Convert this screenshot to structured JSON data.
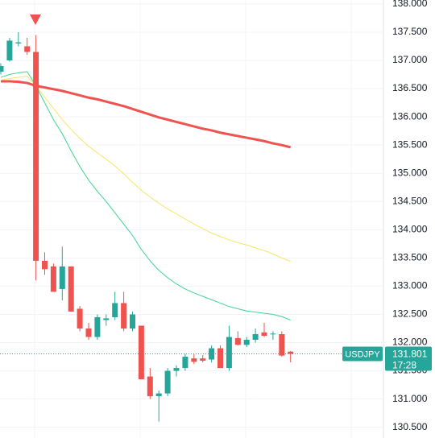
{
  "chart_data": {
    "type": "candlestick",
    "symbol": "USDJPY",
    "last_price": 131.801,
    "last_time": "17:28",
    "up_color": "#26a69a",
    "down_color": "#ef5350",
    "ylim": [
      130.31,
      138.07
    ],
    "yticks": [
      {
        "value": 130.5,
        "label": "130.500"
      },
      {
        "value": 131,
        "label": "131.000"
      },
      {
        "value": 131.5,
        "label": "131.500"
      },
      {
        "value": 132,
        "label": "132.000"
      },
      {
        "value": 132.5,
        "label": "132.500"
      },
      {
        "value": 133,
        "label": "133.000"
      },
      {
        "value": 133.5,
        "label": "133.500"
      },
      {
        "value": 134,
        "label": "134.000"
      },
      {
        "value": 134.5,
        "label": "134.500"
      },
      {
        "value": 135,
        "label": "135.000"
      },
      {
        "value": 135.5,
        "label": "135.500"
      },
      {
        "value": 136,
        "label": "136.000"
      },
      {
        "value": 136.5,
        "label": "136.500"
      },
      {
        "value": 137,
        "label": "137.000"
      },
      {
        "value": 137.5,
        "label": "137.500"
      },
      {
        "value": 138,
        "label": "138.000"
      }
    ],
    "grid": true,
    "open": [
      136.8,
      137.0,
      137.3,
      137.25,
      137.15,
      133.45,
      133.35,
      132.95,
      133.35,
      132.6,
      132.25,
      132.1,
      132.4,
      132.45,
      132.7,
      132.25,
      132.3,
      131.4,
      131.05,
      131.1,
      131.5,
      131.55,
      131.72,
      131.72,
      131.7,
      131.9,
      131.55,
      132.08,
      131.96,
      132.05,
      132.18,
      132.15,
      132.15,
      131.84
    ],
    "high": [
      136.95,
      137.4,
      137.5,
      137.4,
      137.45,
      133.6,
      133.4,
      133.7,
      133.35,
      132.65,
      132.35,
      132.5,
      132.5,
      132.9,
      132.9,
      132.55,
      132.3,
      131.55,
      131.15,
      131.55,
      131.6,
      131.8,
      131.8,
      131.78,
      131.95,
      131.95,
      132.3,
      132.2,
      132.1,
      132.25,
      132.35,
      132.2,
      132.2,
      131.85
    ],
    "low": [
      136.75,
      136.98,
      137.25,
      137.1,
      133.1,
      133.2,
      132.9,
      132.75,
      132.55,
      132.2,
      132.05,
      132.05,
      132.3,
      132.4,
      132.2,
      132.2,
      131.35,
      131.0,
      130.6,
      131.05,
      131.4,
      131.5,
      131.62,
      131.65,
      131.65,
      131.55,
      131.5,
      131.95,
      131.92,
      132.0,
      132.1,
      132.05,
      131.75,
      131.65
    ],
    "close": [
      136.9,
      137.35,
      137.32,
      137.15,
      133.45,
      133.3,
      132.9,
      133.35,
      132.55,
      132.25,
      132.1,
      132.45,
      132.43,
      132.7,
      132.25,
      132.5,
      131.35,
      131.05,
      131.1,
      131.5,
      131.55,
      131.75,
      131.66,
      131.68,
      131.9,
      131.55,
      132.1,
      131.96,
      132.05,
      132.15,
      132.12,
      132.16,
      131.77,
      131.8
    ],
    "lines": [
      {
        "color": "#ef5350",
        "width": 3,
        "values": [
          136.63,
          136.63,
          136.62,
          136.6,
          136.55,
          136.52,
          136.49,
          136.46,
          136.42,
          136.38,
          136.34,
          136.31,
          136.27,
          136.23,
          136.19,
          136.14,
          136.09,
          136.04,
          135.99,
          135.95,
          135.91,
          135.87,
          135.83,
          135.79,
          135.76,
          135.72,
          135.69,
          135.66,
          135.63,
          135.6,
          135.57,
          135.53,
          135.5,
          135.46
        ]
      },
      {
        "color": "#f5e663",
        "width": 1,
        "values": [
          136.65,
          136.68,
          136.7,
          136.72,
          136.55,
          136.35,
          136.15,
          135.95,
          135.78,
          135.62,
          135.48,
          135.36,
          135.25,
          135.13,
          134.99,
          134.84,
          134.7,
          134.58,
          134.47,
          134.37,
          134.28,
          134.19,
          134.1,
          134.02,
          133.94,
          133.88,
          133.82,
          133.77,
          133.73,
          133.68,
          133.63,
          133.57,
          133.5,
          133.44
        ]
      },
      {
        "color": "#3ed492",
        "width": 1,
        "values": [
          136.7,
          136.75,
          136.78,
          136.8,
          136.55,
          136.25,
          135.95,
          135.7,
          135.4,
          135.12,
          134.88,
          134.68,
          134.5,
          134.3,
          134.1,
          133.9,
          133.65,
          133.45,
          133.28,
          133.15,
          133.04,
          132.95,
          132.88,
          132.82,
          132.76,
          132.7,
          132.64,
          132.6,
          132.56,
          132.54,
          132.52,
          132.5,
          132.46,
          132.4
        ]
      }
    ]
  }
}
